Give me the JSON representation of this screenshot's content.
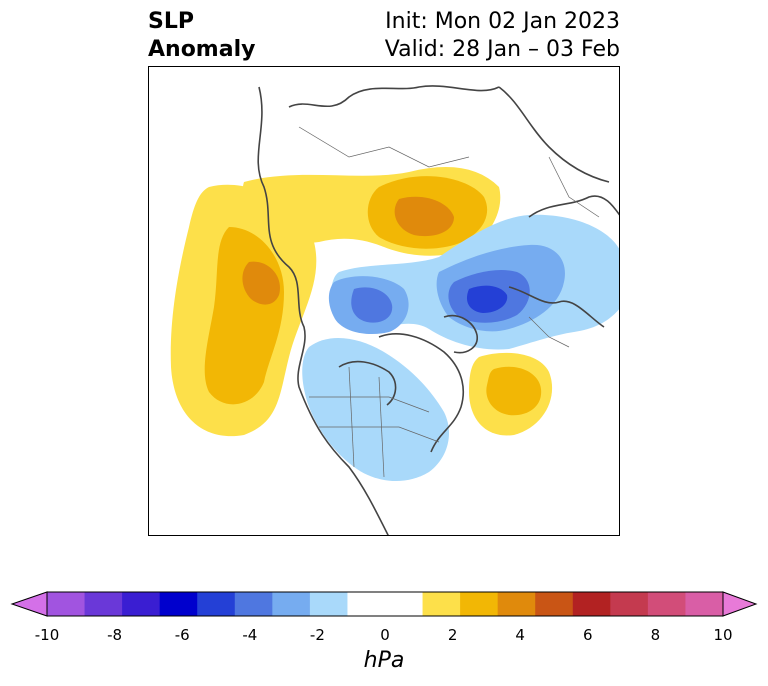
{
  "title": {
    "left_line1": "SLP",
    "left_line2": "Anomaly",
    "init": "Init: Mon 02 Jan 2023",
    "valid": "Valid: 28 Jan – 03 Feb"
  },
  "colorbar": {
    "unit": "hPa",
    "ticks": [
      "-10",
      "-8",
      "-6",
      "-4",
      "-2",
      "0",
      "2",
      "4",
      "6",
      "8",
      "10"
    ],
    "colors": [
      "#d470e8",
      "#a154e0",
      "#6a38d8",
      "#3a1ed2",
      "#0000cd",
      "#2440d6",
      "#4f77e0",
      "#76acf0",
      "#a9d9fa",
      "#ffffff",
      "#ffffff",
      "#fde04a",
      "#f2b705",
      "#e08a0c",
      "#c95515",
      "#b22222",
      "#c43a4f",
      "#d24d79",
      "#d95ea6",
      "#e87ad8"
    ]
  }
}
